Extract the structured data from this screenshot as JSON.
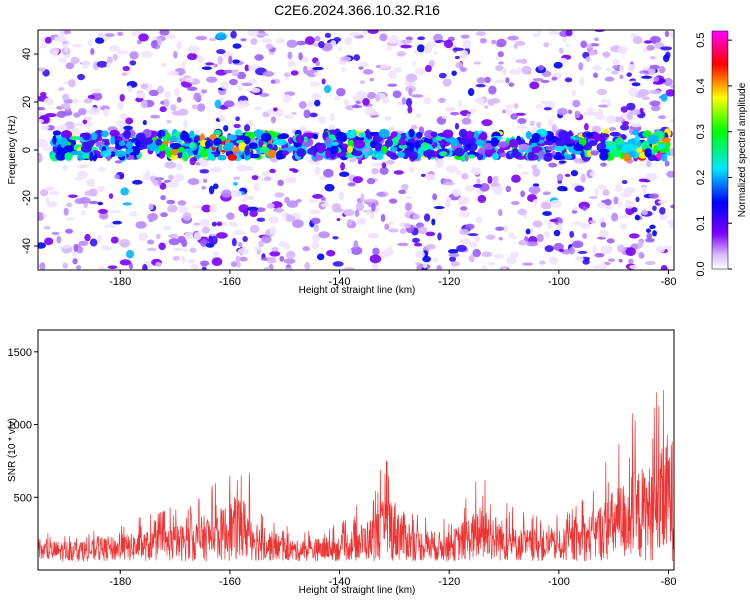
{
  "title": "C2E6.2024.366.10.32.R16",
  "chart_data": [
    {
      "type": "heatmap",
      "xlabel": "Height of straight line (km)",
      "ylabel": "Frequency (Hz)",
      "xlim": [
        -195,
        -79
      ],
      "ylim": [
        -50,
        50
      ],
      "x_ticks": [
        "-180",
        "-160",
        "-140",
        "-120",
        "-100",
        "-80"
      ],
      "y_ticks": [
        "40",
        "20",
        "0",
        "-20",
        "-40"
      ],
      "colorbar": {
        "label": "Normalized spectral amplitude",
        "range": [
          0.0,
          0.52
        ],
        "ticks": [
          "0.0",
          "0.1",
          "0.2",
          "0.3",
          "0.4",
          "0.5"
        ],
        "colormap": [
          "#ffffff",
          "#7a00ff",
          "#0000ff",
          "#00e5ff",
          "#00ff00",
          "#ffff00",
          "#ff0000",
          "#ff00ff"
        ]
      },
      "description_signal": {
        "center_frequency": 2,
        "bandwidth": 8
      }
    },
    {
      "type": "line",
      "xlabel": "Height of straight line (km)",
      "ylabel": "SNR (10 * v/v)",
      "xlim": [
        -195,
        -79
      ],
      "ylim": [
        0,
        1650
      ],
      "x_ticks": [
        "-180",
        "-160",
        "-140",
        "-120",
        "-100",
        "-80"
      ],
      "y_ticks": [
        "1500",
        "1000",
        "500"
      ],
      "series": [
        {
          "color": "#ee3333",
          "envelope": [
            {
              "x": -195,
              "y": 250
            },
            {
              "x": -185,
              "y": 270
            },
            {
              "x": -175,
              "y": 380
            },
            {
              "x": -168,
              "y": 480
            },
            {
              "x": -162,
              "y": 650
            },
            {
              "x": -158,
              "y": 860
            },
            {
              "x": -154,
              "y": 420
            },
            {
              "x": -148,
              "y": 260
            },
            {
              "x": -140,
              "y": 320
            },
            {
              "x": -134,
              "y": 560
            },
            {
              "x": -131,
              "y": 880
            },
            {
              "x": -126,
              "y": 400
            },
            {
              "x": -120,
              "y": 360
            },
            {
              "x": -114,
              "y": 700
            },
            {
              "x": -108,
              "y": 420
            },
            {
              "x": -100,
              "y": 380
            },
            {
              "x": -95,
              "y": 550
            },
            {
              "x": -90,
              "y": 900
            },
            {
              "x": -86,
              "y": 1150
            },
            {
              "x": -82,
              "y": 1250
            },
            {
              "x": -80,
              "y": 1650
            },
            {
              "x": -79,
              "y": 1500
            }
          ]
        }
      ]
    }
  ]
}
